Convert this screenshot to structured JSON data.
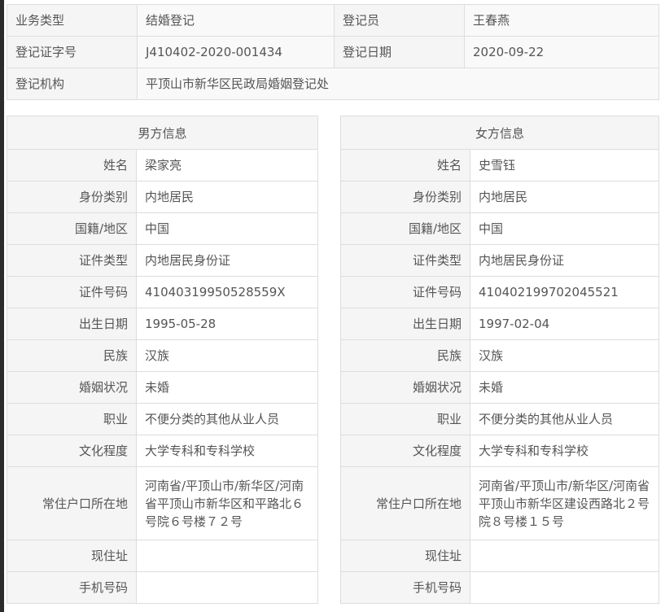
{
  "top": {
    "rows": [
      [
        {
          "label": "业务类型",
          "value": "结婚登记"
        },
        {
          "label": "登记员",
          "value": "王春燕"
        }
      ],
      [
        {
          "label": "登记证字号",
          "value": "J410402-2020-001434"
        },
        {
          "label": "登记日期",
          "value": "2020-09-22"
        }
      ]
    ],
    "org_label": "登记机构",
    "org_value": "平顶山市新华区民政局婚姻登记处"
  },
  "male": {
    "title": "男方信息",
    "fields": [
      {
        "label": "姓名",
        "value": "梁家亮"
      },
      {
        "label": "身份类别",
        "value": "内地居民"
      },
      {
        "label": "国籍/地区",
        "value": "中国"
      },
      {
        "label": "证件类型",
        "value": "内地居民身份证"
      },
      {
        "label": "证件号码",
        "value": "41040319950528559X"
      },
      {
        "label": "出生日期",
        "value": "1995-05-28"
      },
      {
        "label": "民族",
        "value": "汉族"
      },
      {
        "label": "婚姻状况",
        "value": "未婚"
      },
      {
        "label": "职业",
        "value": "不便分类的其他从业人员"
      },
      {
        "label": "文化程度",
        "value": "大学专科和专科学校"
      },
      {
        "label": "常住户口所在地",
        "value": "河南省/平顶山市/新华区/河南省平顶山市新华区和平路北６号院６号楼７２号"
      },
      {
        "label": "现住址",
        "value": ""
      },
      {
        "label": "手机号码",
        "value": ""
      }
    ]
  },
  "female": {
    "title": "女方信息",
    "fields": [
      {
        "label": "姓名",
        "value": "史雪钰"
      },
      {
        "label": "身份类别",
        "value": "内地居民"
      },
      {
        "label": "国籍/地区",
        "value": "中国"
      },
      {
        "label": "证件类型",
        "value": "内地居民身份证"
      },
      {
        "label": "证件号码",
        "value": "410402199702045521"
      },
      {
        "label": "出生日期",
        "value": "1997-02-04"
      },
      {
        "label": "民族",
        "value": "汉族"
      },
      {
        "label": "婚姻状况",
        "value": "未婚"
      },
      {
        "label": "职业",
        "value": "不便分类的其他从业人员"
      },
      {
        "label": "文化程度",
        "value": "大学专科和专科学校"
      },
      {
        "label": "常住户口所在地",
        "value": "河南省/平顶山市/新华区/河南省平顶山市新华区建设西路北２号院８号楼１５号"
      },
      {
        "label": "现住址",
        "value": ""
      },
      {
        "label": "手机号码",
        "value": ""
      }
    ]
  }
}
